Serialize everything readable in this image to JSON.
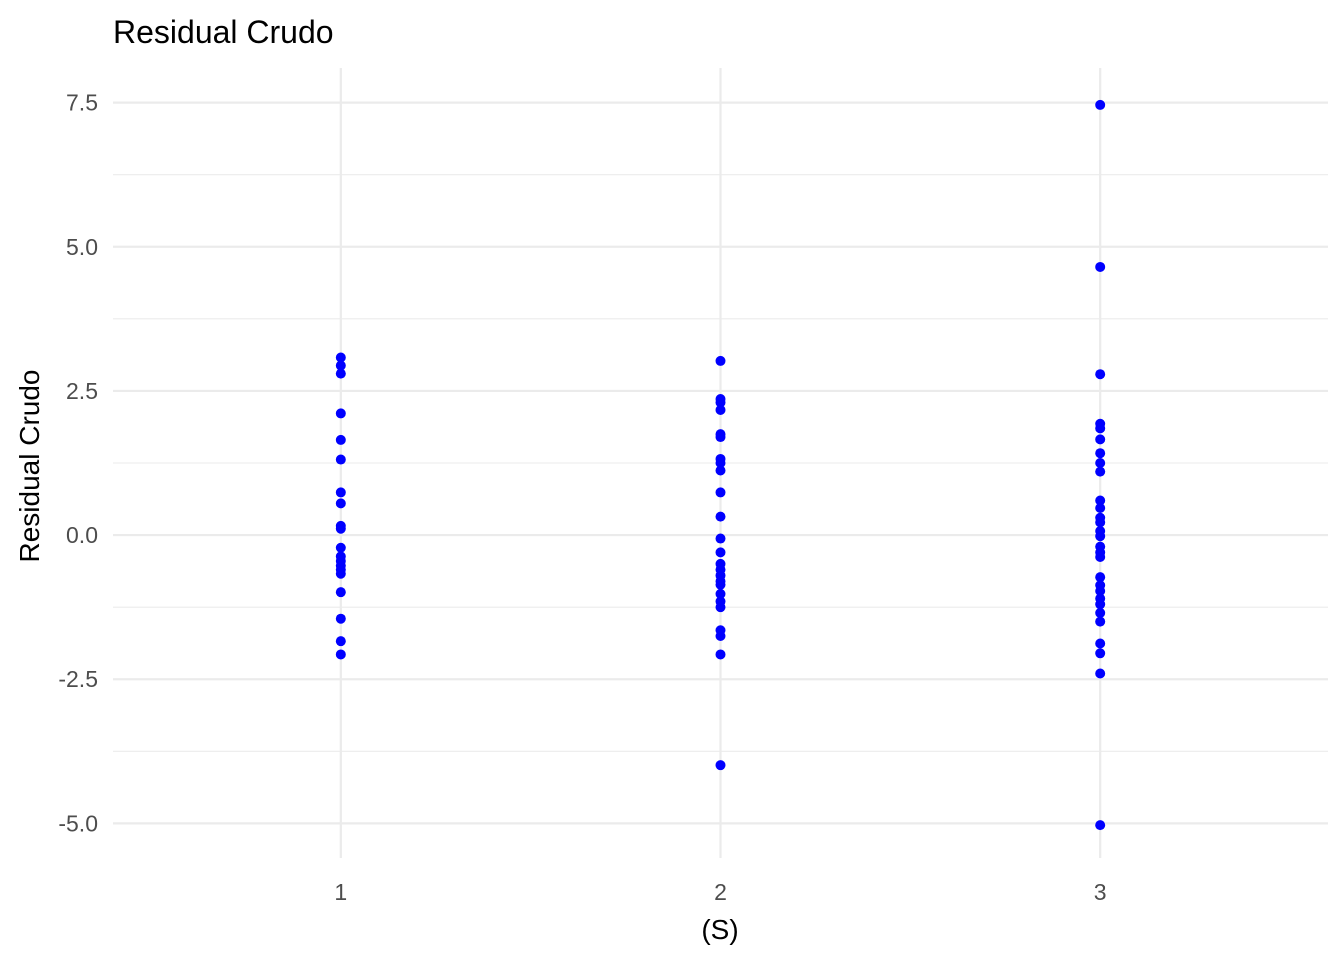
{
  "chart_data": {
    "type": "scatter",
    "title": "Residual Crudo",
    "xlabel": "(S)",
    "ylabel": "Residual Crudo",
    "x_categories": [
      "1",
      "2",
      "3"
    ],
    "xlim": [
      0.4,
      3.6
    ],
    "ylim": [
      -5.6,
      8.1
    ],
    "y_ticks": [
      7.5,
      5.0,
      2.5,
      0.0,
      -2.5,
      -5.0
    ],
    "y_tick_labels": [
      "7.5",
      "5.0",
      "2.5",
      "0.0",
      "-2.5",
      "-5.0"
    ],
    "y_minor_ticks": [
      6.25,
      3.75,
      1.25,
      -1.25,
      -3.75
    ],
    "grid": true,
    "point_color": "#0000ff",
    "series": [
      {
        "values": [
          {
            "x": 1,
            "y": 3.08
          },
          {
            "x": 1,
            "y": 2.94
          },
          {
            "x": 1,
            "y": 2.8
          },
          {
            "x": 1,
            "y": 2.11
          },
          {
            "x": 1,
            "y": 1.65
          },
          {
            "x": 1,
            "y": 1.31
          },
          {
            "x": 1,
            "y": 0.74
          },
          {
            "x": 1,
            "y": 0.55
          },
          {
            "x": 1,
            "y": 0.16
          },
          {
            "x": 1,
            "y": 0.11
          },
          {
            "x": 1,
            "y": -0.22
          },
          {
            "x": 1,
            "y": -0.37
          },
          {
            "x": 1,
            "y": -0.45
          },
          {
            "x": 1,
            "y": -0.53
          },
          {
            "x": 1,
            "y": -0.6
          },
          {
            "x": 1,
            "y": -0.67
          },
          {
            "x": 1,
            "y": -0.99
          },
          {
            "x": 1,
            "y": -1.45
          },
          {
            "x": 1,
            "y": -1.84
          },
          {
            "x": 1,
            "y": -2.07
          },
          {
            "x": 2,
            "y": 3.02
          },
          {
            "x": 2,
            "y": 2.36
          },
          {
            "x": 2,
            "y": 2.3
          },
          {
            "x": 2,
            "y": 2.17
          },
          {
            "x": 2,
            "y": 1.75
          },
          {
            "x": 2,
            "y": 1.7
          },
          {
            "x": 2,
            "y": 1.32
          },
          {
            "x": 2,
            "y": 1.25
          },
          {
            "x": 2,
            "y": 1.12
          },
          {
            "x": 2,
            "y": 0.74
          },
          {
            "x": 2,
            "y": 0.32
          },
          {
            "x": 2,
            "y": -0.06
          },
          {
            "x": 2,
            "y": -0.3
          },
          {
            "x": 2,
            "y": -0.5
          },
          {
            "x": 2,
            "y": -0.6
          },
          {
            "x": 2,
            "y": -0.7
          },
          {
            "x": 2,
            "y": -0.8
          },
          {
            "x": 2,
            "y": -0.86
          },
          {
            "x": 2,
            "y": -1.02
          },
          {
            "x": 2,
            "y": -1.15
          },
          {
            "x": 2,
            "y": -1.25
          },
          {
            "x": 2,
            "y": -1.65
          },
          {
            "x": 2,
            "y": -1.75
          },
          {
            "x": 2,
            "y": -2.07
          },
          {
            "x": 2,
            "y": -3.99
          },
          {
            "x": 3,
            "y": 7.46
          },
          {
            "x": 3,
            "y": 4.65
          },
          {
            "x": 3,
            "y": 2.79
          },
          {
            "x": 3,
            "y": 1.93
          },
          {
            "x": 3,
            "y": 1.85
          },
          {
            "x": 3,
            "y": 1.66
          },
          {
            "x": 3,
            "y": 1.42
          },
          {
            "x": 3,
            "y": 1.25
          },
          {
            "x": 3,
            "y": 1.1
          },
          {
            "x": 3,
            "y": 0.6
          },
          {
            "x": 3,
            "y": 0.47
          },
          {
            "x": 3,
            "y": 0.3
          },
          {
            "x": 3,
            "y": 0.22
          },
          {
            "x": 3,
            "y": 0.07
          },
          {
            "x": 3,
            "y": -0.02
          },
          {
            "x": 3,
            "y": -0.2
          },
          {
            "x": 3,
            "y": -0.3
          },
          {
            "x": 3,
            "y": -0.38
          },
          {
            "x": 3,
            "y": -0.73
          },
          {
            "x": 3,
            "y": -0.87
          },
          {
            "x": 3,
            "y": -0.97
          },
          {
            "x": 3,
            "y": -1.1
          },
          {
            "x": 3,
            "y": -1.2
          },
          {
            "x": 3,
            "y": -1.35
          },
          {
            "x": 3,
            "y": -1.5
          },
          {
            "x": 3,
            "y": -1.88
          },
          {
            "x": 3,
            "y": -2.05
          },
          {
            "x": 3,
            "y": -2.4
          },
          {
            "x": 3,
            "y": -5.03
          }
        ]
      }
    ]
  }
}
